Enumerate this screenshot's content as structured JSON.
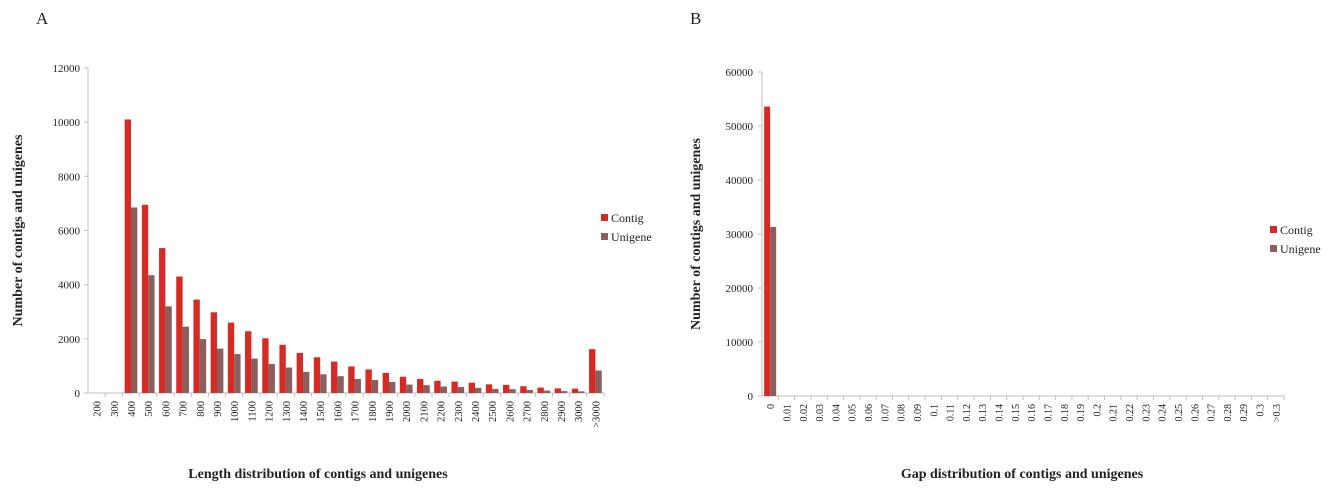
{
  "colors": {
    "contig": "#d62b24",
    "unigene": "#8c5f5f",
    "axis": "#bfbfbf",
    "text": "#222222"
  },
  "chart_data": [
    {
      "panel_label": "A",
      "type": "bar",
      "xlabel": "Length distribution of contigs and unigenes",
      "ylabel": "Number  of contigs and unigenes",
      "ylim": [
        0,
        12000
      ],
      "yticks": [
        0,
        2000,
        4000,
        6000,
        8000,
        10000,
        12000
      ],
      "grid": false,
      "legend_position": "right",
      "categories": [
        "200",
        "300",
        "400",
        "500",
        "600",
        "700",
        "800",
        "900",
        "1000",
        "1100",
        "1200",
        "1300",
        "1400",
        "1500",
        "1600",
        "1700",
        "1800",
        "1900",
        "2000",
        "2100",
        "2200",
        "2300",
        "2400",
        "2500",
        "2600",
        "2700",
        "2800",
        "2900",
        "3000",
        ">3000"
      ],
      "series": [
        {
          "name": "Contig",
          "color": "#d62b24",
          "values": [
            0,
            0,
            10100,
            6950,
            5350,
            4300,
            3450,
            2980,
            2600,
            2280,
            2020,
            1780,
            1480,
            1320,
            1160,
            980,
            870,
            740,
            600,
            520,
            450,
            420,
            380,
            320,
            300,
            250,
            200,
            170,
            160,
            1620
          ]
        },
        {
          "name": "Unigene",
          "color": "#8c5f5f",
          "values": [
            0,
            0,
            6850,
            4350,
            3200,
            2450,
            1990,
            1640,
            1440,
            1270,
            1070,
            940,
            780,
            690,
            620,
            520,
            480,
            410,
            310,
            290,
            240,
            220,
            190,
            150,
            140,
            110,
            90,
            70,
            60,
            830
          ]
        }
      ]
    },
    {
      "panel_label": "B",
      "type": "bar",
      "xlabel": "Gap distribution of contigs and unigenes",
      "ylabel": "Number  of contigs and unigenes",
      "ylim": [
        0,
        60000
      ],
      "yticks": [
        0,
        10000,
        20000,
        30000,
        40000,
        50000,
        60000
      ],
      "grid": false,
      "legend_position": "right",
      "categories": [
        "0",
        "0.01",
        "0.02",
        "0.03",
        "0.04",
        "0.05",
        "0.06",
        "0.07",
        "0.08",
        "0.09",
        "0.1",
        "0.11",
        "0.12",
        "0.13",
        "0.14",
        "0.15",
        "0.16",
        "0.17",
        "0.18",
        "0.19",
        "0.2",
        "0.21",
        "0.22",
        "0.23",
        "0.24",
        "0.25",
        "0.26",
        "0.27",
        "0.28",
        "0.29",
        "0.3",
        ">0.3"
      ],
      "series": [
        {
          "name": "Contig",
          "color": "#d62b24",
          "values": [
            53600,
            0,
            0,
            0,
            0,
            0,
            0,
            0,
            0,
            0,
            0,
            0,
            0,
            0,
            0,
            0,
            0,
            0,
            0,
            0,
            0,
            0,
            0,
            0,
            0,
            0,
            0,
            0,
            0,
            0,
            0,
            0
          ]
        },
        {
          "name": "Unigene",
          "color": "#8c5f5f",
          "values": [
            31300,
            0,
            0,
            0,
            0,
            0,
            0,
            0,
            0,
            0,
            0,
            0,
            0,
            0,
            0,
            0,
            0,
            0,
            0,
            0,
            0,
            0,
            0,
            0,
            0,
            0,
            0,
            0,
            0,
            0,
            0,
            0
          ]
        }
      ]
    }
  ]
}
